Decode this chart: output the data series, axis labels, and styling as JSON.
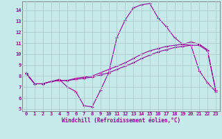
{
  "xlabel": "Windchill (Refroidissement éolien,°C)",
  "bg_color": "#c6e9e9",
  "grid_color": "#b0cccc",
  "line_color": "#990099",
  "xlim": [
    -0.5,
    23.5
  ],
  "ylim": [
    4.8,
    14.8
  ],
  "yticks": [
    5,
    6,
    7,
    8,
    9,
    10,
    11,
    12,
    13,
    14
  ],
  "xticks": [
    0,
    1,
    2,
    3,
    4,
    5,
    6,
    7,
    8,
    9,
    10,
    11,
    12,
    13,
    14,
    15,
    16,
    17,
    18,
    19,
    20,
    21,
    22,
    23
  ],
  "curve1": [
    8.3,
    7.3,
    7.3,
    7.5,
    7.7,
    7.0,
    6.6,
    5.3,
    5.2,
    6.7,
    8.3,
    11.5,
    13.1,
    14.2,
    14.5,
    14.6,
    13.3,
    12.5,
    11.5,
    10.9,
    10.8,
    8.5,
    7.4,
    6.6
  ],
  "curve2": [
    8.2,
    7.3,
    7.3,
    7.5,
    7.6,
    7.6,
    7.7,
    7.8,
    7.9,
    8.1,
    8.3,
    8.6,
    8.9,
    9.2,
    9.6,
    9.9,
    10.2,
    10.4,
    10.6,
    10.7,
    10.8,
    10.8,
    10.3,
    6.7
  ],
  "curve3": [
    8.2,
    7.3,
    7.3,
    7.5,
    7.6,
    7.6,
    7.8,
    7.9,
    8.0,
    8.3,
    8.6,
    8.9,
    9.2,
    9.6,
    10.0,
    10.3,
    10.5,
    10.7,
    10.8,
    10.9,
    11.1,
    10.9,
    10.4,
    6.7
  ],
  "font_size_ticks": 5.0,
  "font_size_xlabel": 5.5,
  "line_width": 0.8,
  "marker_size": 3.5
}
